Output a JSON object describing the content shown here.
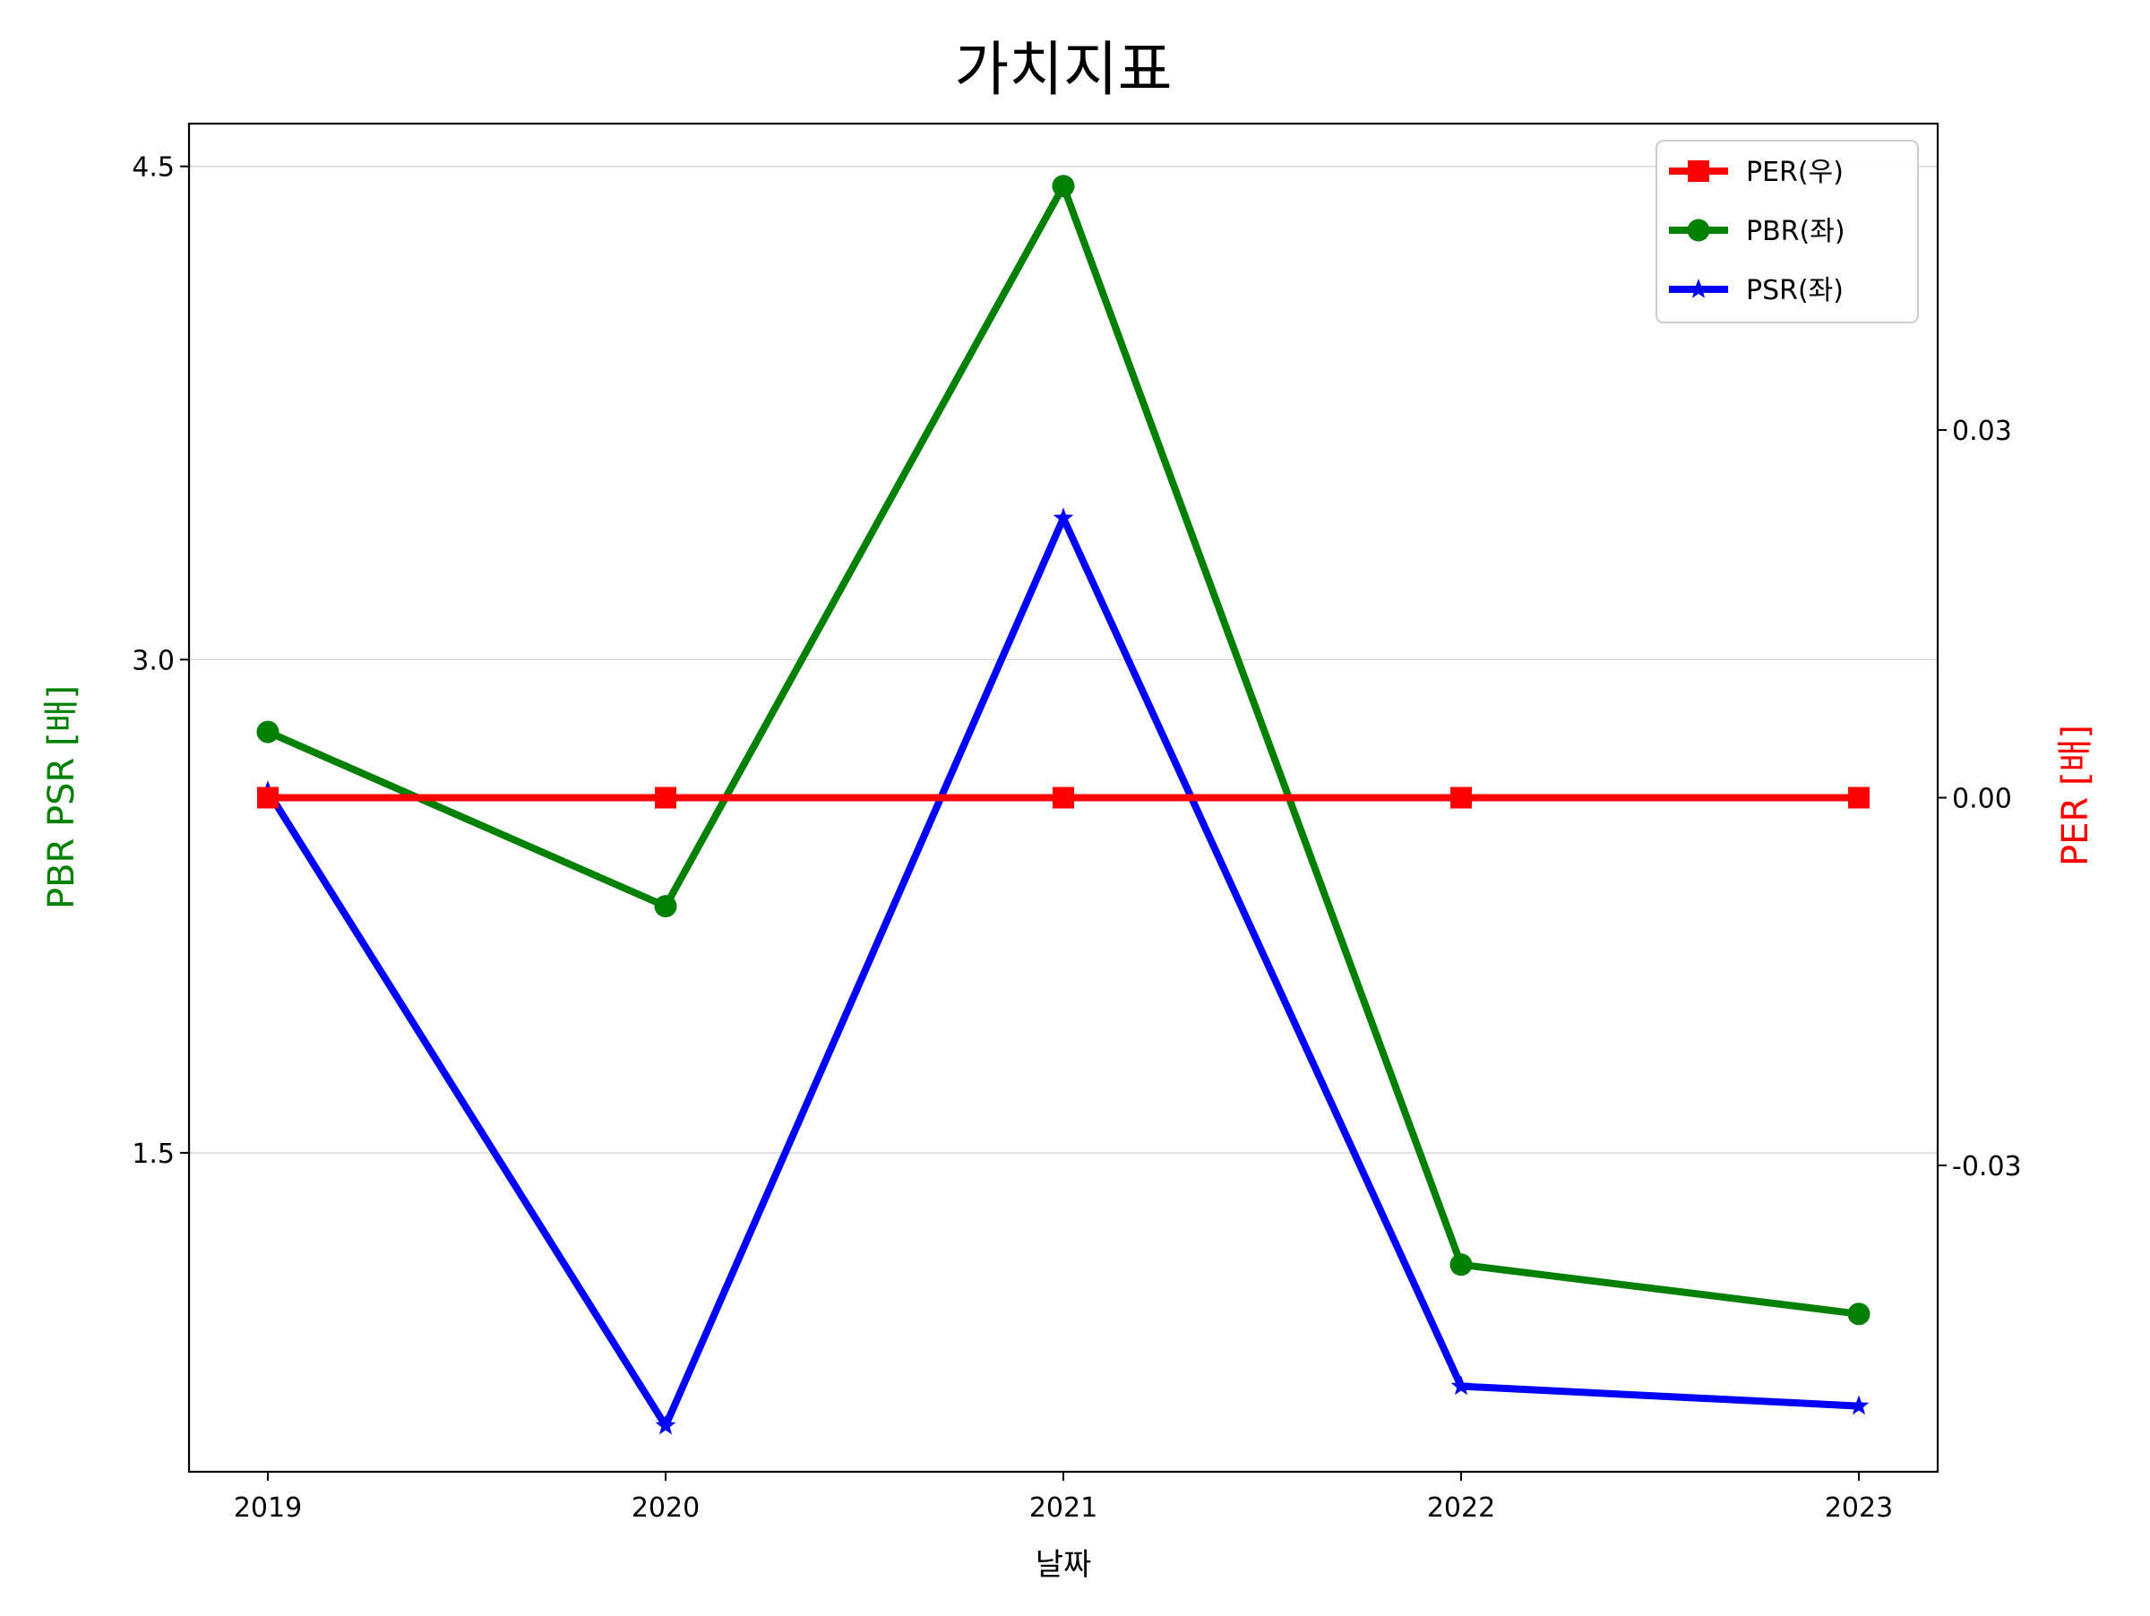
{
  "chart_data": {
    "type": "line",
    "title": "가치지표",
    "xlabel": "날짜",
    "ylabel_left": "PBR PSR [배]",
    "ylabel_right": "PER [배]",
    "categories": [
      "2019",
      "2020",
      "2021",
      "2022",
      "2023"
    ],
    "left_axis": {
      "ticks": [
        1.5,
        3.0,
        4.5
      ],
      "tick_labels": [
        "1.5",
        "3.0",
        "4.5"
      ],
      "ylim": [
        0.53,
        4.63
      ],
      "grid": true
    },
    "right_axis": {
      "ticks": [
        -0.03,
        0.0,
        0.03
      ],
      "tick_labels": [
        "-0.03",
        "0.00",
        "0.03"
      ],
      "ylim": [
        -0.055,
        0.055
      ]
    },
    "legend_position": "top-right",
    "series": [
      {
        "name": "PER(우)",
        "axis": "right",
        "color": "#ff0000",
        "marker": "square",
        "values": [
          0.0,
          0.0,
          0.0,
          0.0,
          0.0
        ]
      },
      {
        "name": "PBR(좌)",
        "axis": "left",
        "color": "#008000",
        "marker": "circle",
        "values": [
          2.78,
          2.25,
          4.44,
          1.16,
          1.01
        ]
      },
      {
        "name": "PSR(좌)",
        "axis": "left",
        "color": "#0000ff",
        "marker": "star",
        "values": [
          2.6,
          0.67,
          3.43,
          0.79,
          0.73
        ]
      }
    ]
  }
}
